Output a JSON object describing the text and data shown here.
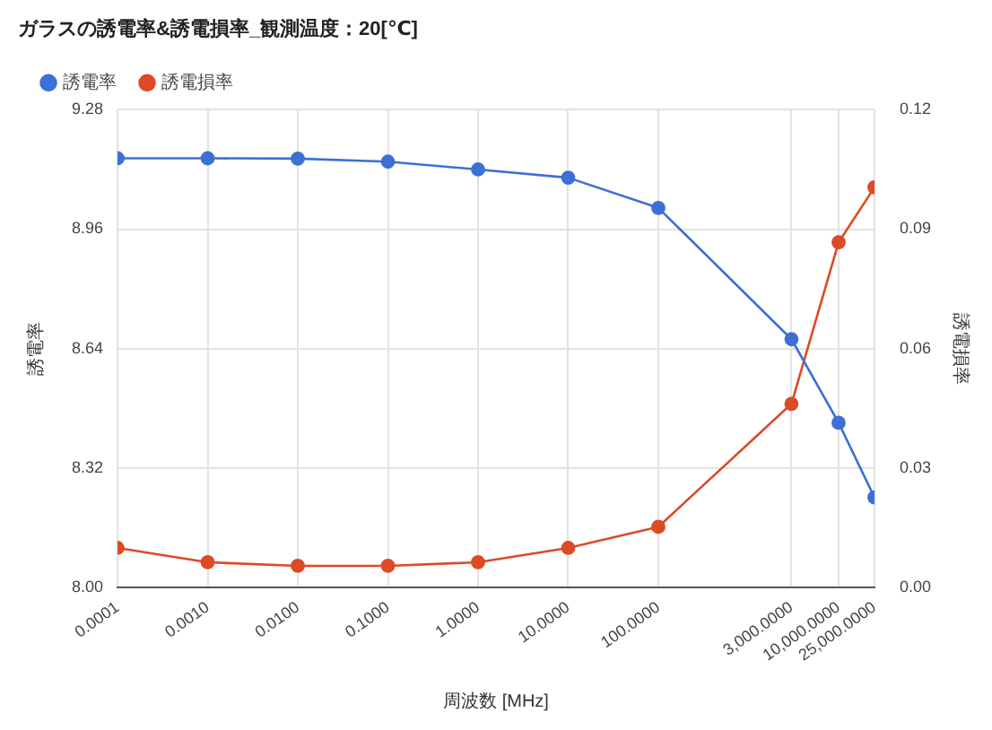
{
  "chart_data": {
    "type": "line",
    "title": "ガラスの誘電率&誘電損率_観測温度：20[℃]",
    "xlabel": "周波数 [MHz]",
    "ylabel": "誘電率",
    "y2label": "誘電損率",
    "x": [
      0.0001,
      0.001,
      0.01,
      0.1,
      1,
      10,
      100,
      3000,
      10000,
      25000
    ],
    "series": [
      {
        "name": "誘電率",
        "color": "#3d6fd6",
        "values": [
          9.15,
          9.15,
          9.149,
          9.141,
          9.12,
          9.098,
          9.017,
          8.665,
          8.441,
          8.241
        ]
      },
      {
        "name": "誘電損率",
        "color": "#dc4a26",
        "axis": "y2",
        "values": [
          0.0099,
          0.0063,
          0.0054,
          0.0054,
          0.0063,
          0.0099,
          0.0152,
          0.0461,
          0.0867,
          0.1005
        ]
      }
    ],
    "log": "x",
    "xlim": [
      0.0001,
      25000
    ],
    "xticks": [
      {
        "value": 0.0001,
        "label": "0.0001"
      },
      {
        "value": 0.001,
        "label": "0.0010"
      },
      {
        "value": 0.01,
        "label": "0.0100"
      },
      {
        "value": 0.1,
        "label": "0.1000"
      },
      {
        "value": 1,
        "label": "1.0000"
      },
      {
        "value": 10,
        "label": "10.0000"
      },
      {
        "value": 100,
        "label": "100.0000"
      },
      {
        "value": 3000,
        "label": "3,000.0000"
      },
      {
        "value": 10000,
        "label": "10,000.0000"
      },
      {
        "value": 25000,
        "label": "25,000.0000"
      }
    ],
    "ylim": [
      8.0,
      9.28
    ],
    "yticks": [
      {
        "value": 8,
        "label": "8.00"
      },
      8.32,
      8.64,
      8.96,
      9.28
    ],
    "y2lim": [
      0,
      0.12
    ],
    "y2ticks": [
      {
        "value": 0,
        "label": "0.00"
      },
      0.03,
      0.06,
      0.09,
      0.12
    ],
    "grid": true,
    "legend": "top left",
    "marker": "circle",
    "line_style": "solid"
  }
}
